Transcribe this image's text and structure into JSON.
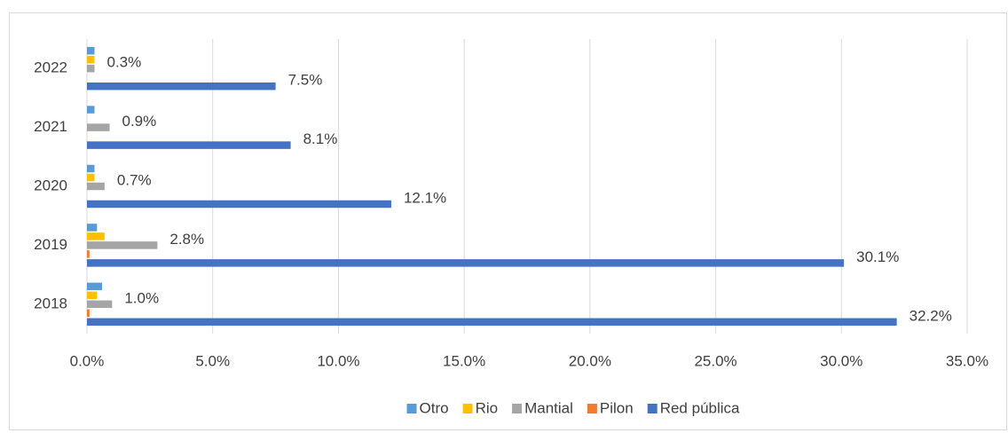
{
  "chart_data": {
    "type": "hbar",
    "categories": [
      "2018",
      "2019",
      "2020",
      "2021",
      "2022"
    ],
    "series": [
      {
        "name": "Otro",
        "color": "#5b9bd5",
        "values": [
          0.6,
          0.4,
          0.3,
          0.3,
          0.3
        ]
      },
      {
        "name": "Rio",
        "color": "#ffc000",
        "values": [
          0.4,
          0.7,
          0.3,
          0,
          0.3
        ]
      },
      {
        "name": "Mantial",
        "color": "#a5a5a5",
        "values": [
          1.0,
          2.8,
          0.7,
          0.9,
          0.3
        ],
        "value_labels": [
          "1.0%",
          "2.8%",
          "0.7%",
          "0.9%",
          "0.3%"
        ]
      },
      {
        "name": "Pilon",
        "color": "#ed7d31",
        "values": [
          0.1,
          0.1,
          0,
          0,
          0
        ]
      },
      {
        "name": "Red pública",
        "color": "#4472c4",
        "values": [
          32.2,
          30.1,
          12.1,
          8.1,
          7.5
        ],
        "value_labels": [
          "32.2%",
          "30.1%",
          "12.1%",
          "8.1%",
          "7.5%"
        ]
      }
    ],
    "xlim": [
      0,
      35
    ],
    "xticks": [
      {
        "value": 0,
        "label": "0.0%"
      },
      {
        "value": 5,
        "label": "5.0%"
      },
      {
        "value": 10,
        "label": "10.0%"
      },
      {
        "value": 15,
        "label": "15.0%"
      },
      {
        "value": 20,
        "label": "20.0%"
      },
      {
        "value": 25,
        "label": "25.0%"
      },
      {
        "value": 30,
        "label": "30.0%"
      },
      {
        "value": 35,
        "label": "35.0%"
      }
    ],
    "grid": true,
    "legend": "bottom"
  }
}
